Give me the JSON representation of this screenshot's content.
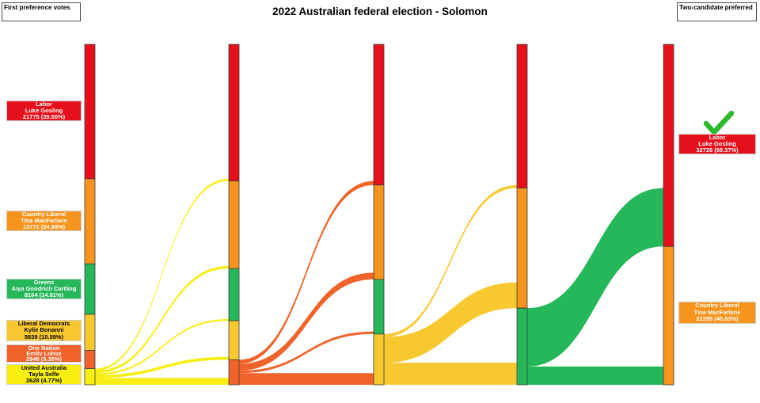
{
  "title": "2022 Australian federal election - Solomon",
  "corner_labels": {
    "left": "First preference votes",
    "right": "Two-candidate preferred"
  },
  "winner_check_color": "#2db92d",
  "first_preferences": [
    {
      "party": "Labor",
      "candidate": "Luke Gosling",
      "votes": "21775 (39.50%)",
      "color": "#e6101c",
      "text_color": "#ffffff"
    },
    {
      "party": "Country Liberal",
      "candidate": "Tina MacFarlane",
      "votes": "13771 (24.98%)",
      "color": "#f7941d",
      "text_color": "#ffffff"
    },
    {
      "party": "Greens",
      "candidate": "Aiya Goodrich Cartling",
      "votes": "8164 (14.81%)",
      "color": "#26b75b",
      "text_color": "#ffffff"
    },
    {
      "party": "Liberal Democrats",
      "candidate": "Kylie Bonanni",
      "votes": "5839 (10.59%)",
      "color": "#f8c830",
      "text_color": "#000000"
    },
    {
      "party": "One Nation",
      "candidate": "Emily Lohse",
      "votes": "2948 (5.35%)",
      "color": "#f0642b",
      "text_color": "#ffffff"
    },
    {
      "party": "United Australia",
      "candidate": "Tayla Selfe",
      "votes": "2628 (4.77%)",
      "color": "#f8ee11",
      "text_color": "#000000"
    }
  ],
  "two_candidate_preferred": [
    {
      "party": "Labor",
      "candidate": "Luke Gosling",
      "votes": "32726 (59.37%)",
      "color": "#e6101c",
      "text_color": "#ffffff",
      "winner": true
    },
    {
      "party": "Country Liberal",
      "candidate": "Tina MacFarlane",
      "votes": "22399 (40.63%)",
      "color": "#f7941d",
      "text_color": "#ffffff",
      "winner": false
    }
  ],
  "chart_data": {
    "type": "sankey",
    "title": "2022 Australian federal election - Solomon",
    "unit": "votes",
    "total_votes": 55125,
    "intermediate_rounds_estimated": true,
    "parties": {
      "ALP": {
        "name": "Labor",
        "color": "#e6101c"
      },
      "CLP": {
        "name": "Country Liberal",
        "color": "#f7941d"
      },
      "GRN": {
        "name": "Greens",
        "color": "#26b75b"
      },
      "LDP": {
        "name": "Liberal Democrats",
        "color": "#f8c830"
      },
      "ON": {
        "name": "One Nation",
        "color": "#f0642b"
      },
      "UAP": {
        "name": "United Australia",
        "color": "#f8ee11"
      }
    },
    "rounds": [
      {
        "segments": [
          {
            "party": "ALP",
            "votes": 21775
          },
          {
            "party": "CLP",
            "votes": 13771
          },
          {
            "party": "GRN",
            "votes": 8164
          },
          {
            "party": "LDP",
            "votes": 5839
          },
          {
            "party": "ON",
            "votes": 2948
          },
          {
            "party": "UAP",
            "votes": 2628
          }
        ]
      },
      {
        "segments": [
          {
            "party": "ALP",
            "votes": 22125
          },
          {
            "party": "CLP",
            "votes": 14191
          },
          {
            "party": "GRN",
            "votes": 8444
          },
          {
            "party": "LDP",
            "votes": 6319
          },
          {
            "party": "ON",
            "votes": 4046
          }
        ]
      },
      {
        "segments": [
          {
            "party": "ALP",
            "votes": 22775
          },
          {
            "party": "CLP",
            "votes": 15291
          },
          {
            "party": "GRN",
            "votes": 8840
          },
          {
            "party": "LDP",
            "votes": 8219
          }
        ]
      },
      {
        "segments": [
          {
            "party": "ALP",
            "votes": 23270
          },
          {
            "party": "CLP",
            "votes": 19441
          },
          {
            "party": "GRN",
            "votes": 12414
          }
        ]
      },
      {
        "segments": [
          {
            "party": "ALP",
            "votes": 32726
          },
          {
            "party": "CLP",
            "votes": 22399
          }
        ]
      }
    ],
    "flows": [
      {
        "from": "UAP",
        "to": [
          {
            "party": "ALP",
            "votes": 350
          },
          {
            "party": "CLP",
            "votes": 420
          },
          {
            "party": "GRN",
            "votes": 280
          },
          {
            "party": "LDP",
            "votes": 480
          },
          {
            "party": "ON",
            "votes": 1098
          }
        ]
      },
      {
        "from": "ON",
        "to": [
          {
            "party": "ALP",
            "votes": 650
          },
          {
            "party": "CLP",
            "votes": 1100
          },
          {
            "party": "GRN",
            "votes": 396
          },
          {
            "party": "LDP",
            "votes": 1900
          }
        ]
      },
      {
        "from": "LDP",
        "to": [
          {
            "party": "ALP",
            "votes": 495
          },
          {
            "party": "CLP",
            "votes": 4150
          },
          {
            "party": "GRN",
            "votes": 3574
          }
        ]
      },
      {
        "from": "GRN",
        "to": [
          {
            "party": "ALP",
            "votes": 9456
          },
          {
            "party": "CLP",
            "votes": 2958
          }
        ]
      }
    ]
  }
}
